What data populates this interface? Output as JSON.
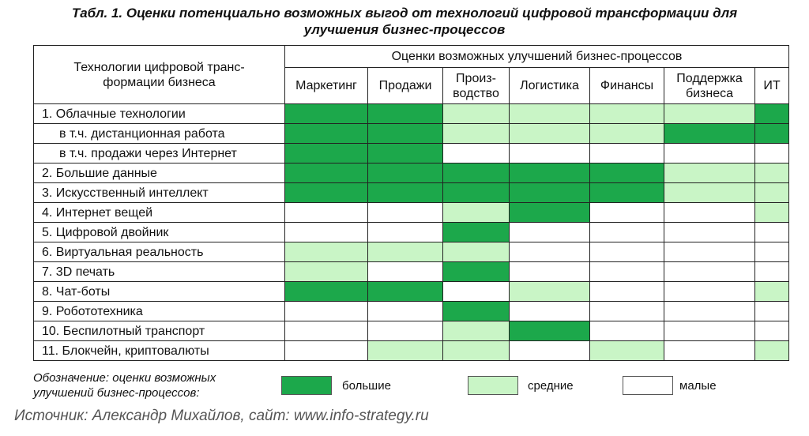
{
  "title": "Табл. 1. Оценки потенциально возможных выгод от технологий цифровой трансформации для\nулучшения бизнес-процессов",
  "table": {
    "row_header": "Технологии цифровой транс-\nформации бизнеса",
    "group_header": "Оценки возможных улучшений бизнес-процессов",
    "columns": [
      "Маркетинг",
      "Продажи",
      "Произ-\nводство",
      "Логистика",
      "Финансы",
      "Поддержка\nбизнеса",
      "ИТ"
    ],
    "rows": [
      {
        "label": "1. Облачные технологии",
        "sub": false,
        "cells": [
          "#1ca84b",
          "#1ca84b",
          "#c9f5c6",
          "#c9f5c6",
          "#c9f5c6",
          "#c9f5c6",
          "#1ca84b"
        ]
      },
      {
        "label": "в т.ч. дистанционная работа",
        "sub": true,
        "cells": [
          "#1ca84b",
          "#1ca84b",
          "#c9f5c6",
          "#c9f5c6",
          "#c9f5c6",
          "#1ca84b",
          "#1ca84b"
        ]
      },
      {
        "label": "в т.ч. продажи через Интернет",
        "sub": true,
        "cells": [
          "#1ca84b",
          "#1ca84b",
          "#ffffff",
          "#ffffff",
          "#ffffff",
          "#ffffff",
          "#ffffff"
        ]
      },
      {
        "label": "2. Большие данные",
        "sub": false,
        "cells": [
          "#1ca84b",
          "#1ca84b",
          "#1ca84b",
          "#1ca84b",
          "#1ca84b",
          "#c9f5c6",
          "#c9f5c6"
        ]
      },
      {
        "label": "3. Искусственный интеллект",
        "sub": false,
        "cells": [
          "#1ca84b",
          "#1ca84b",
          "#1ca84b",
          "#1ca84b",
          "#1ca84b",
          "#c9f5c6",
          "#c9f5c6"
        ]
      },
      {
        "label": "4. Интернет вещей",
        "sub": false,
        "cells": [
          "#ffffff",
          "#ffffff",
          "#c9f5c6",
          "#1ca84b",
          "#ffffff",
          "#ffffff",
          "#c9f5c6"
        ]
      },
      {
        "label": "5. Цифровой двойник",
        "sub": false,
        "cells": [
          "#ffffff",
          "#ffffff",
          "#1ca84b",
          "#ffffff",
          "#ffffff",
          "#ffffff",
          "#ffffff"
        ]
      },
      {
        "label": "6. Виртуальная реальность",
        "sub": false,
        "cells": [
          "#c9f5c6",
          "#c9f5c6",
          "#c9f5c6",
          "#ffffff",
          "#ffffff",
          "#ffffff",
          "#ffffff"
        ]
      },
      {
        "label": "7. 3D печать",
        "sub": false,
        "cells": [
          "#c9f5c6",
          "#ffffff",
          "#1ca84b",
          "#ffffff",
          "#ffffff",
          "#ffffff",
          "#ffffff"
        ]
      },
      {
        "label": "8. Чат-боты",
        "sub": false,
        "cells": [
          "#1ca84b",
          "#1ca84b",
          "#ffffff",
          "#c9f5c6",
          "#ffffff",
          "#ffffff",
          "#c9f5c6"
        ]
      },
      {
        "label": "9. Робототехника",
        "sub": false,
        "cells": [
          "#ffffff",
          "#ffffff",
          "#1ca84b",
          "#ffffff",
          "#ffffff",
          "#ffffff",
          "#ffffff"
        ]
      },
      {
        "label": "10. Беспилотный транспорт",
        "sub": false,
        "cells": [
          "#ffffff",
          "#ffffff",
          "#c9f5c6",
          "#1ca84b",
          "#ffffff",
          "#ffffff",
          "#ffffff"
        ]
      },
      {
        "label": "11. Блокчейн, криптовалюты",
        "sub": false,
        "cells": [
          "#ffffff",
          "#c9f5c6",
          "#c9f5c6",
          "#ffffff",
          "#c9f5c6",
          "#ffffff",
          "#c9f5c6"
        ]
      }
    ]
  },
  "legend": {
    "title": "Обозначение: оценки возможных\nулучшений бизнес-процессов:",
    "items": [
      {
        "label": "большие",
        "color": "#1ca84b"
      },
      {
        "label": "средние",
        "color": "#c9f5c6"
      },
      {
        "label": "малые",
        "color": "#ffffff"
      }
    ]
  },
  "source": "Источник: Александр Михайлов, сайт: www.info-strategy.ru"
}
